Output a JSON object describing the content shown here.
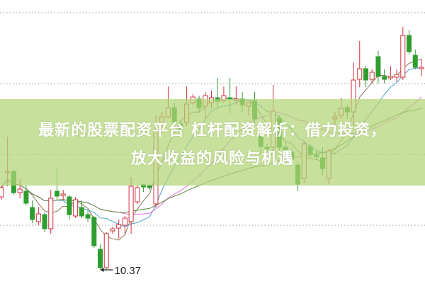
{
  "banner": {
    "title_line1": "最新的股票配资平台 杠杆配资解析：借力投资，",
    "title_line2": "放大收益的风险与机遇"
  },
  "chart_data": {
    "type": "candlestick",
    "title": "",
    "grid": true,
    "gridlines": [
      11,
      12,
      13,
      14
    ],
    "ylim": [
      10.17,
      14.18
    ],
    "colors": {
      "up": "#d0303a",
      "down": "#2f9e2f",
      "banner": "#b2d476",
      "ma": [
        "#8a7a5a",
        "#4a9fd0",
        "#e070e0",
        "#5a8a3a"
      ]
    },
    "moving_average_windows": [
      5,
      10,
      20,
      40
    ],
    "low_annotation": {
      "label": "10.37",
      "value": 10.37,
      "candle_index": 16
    },
    "candles_ohlc": [
      [
        11.4,
        11.56,
        11.36,
        11.53
      ],
      [
        11.74,
        12.25,
        11.55,
        11.76
      ],
      [
        11.76,
        11.78,
        11.43,
        11.46
      ],
      [
        11.46,
        11.65,
        11.38,
        11.51
      ],
      [
        11.48,
        11.56,
        11.28,
        11.31
      ],
      [
        11.25,
        11.35,
        11.03,
        11.08
      ],
      [
        11.05,
        11.26,
        11.0,
        11.16
      ],
      [
        11.15,
        11.18,
        10.9,
        10.95
      ],
      [
        10.95,
        11.5,
        10.88,
        11.38
      ],
      [
        11.48,
        11.81,
        11.35,
        11.41
      ],
      [
        11.42,
        11.5,
        11.36,
        11.44
      ],
      [
        11.4,
        11.43,
        11.08,
        11.15
      ],
      [
        11.13,
        11.4,
        11.1,
        11.36
      ],
      [
        11.25,
        11.35,
        11.1,
        11.13
      ],
      [
        11.15,
        11.22,
        11.05,
        11.1
      ],
      [
        11.11,
        11.13,
        10.68,
        10.71
      ],
      [
        10.66,
        10.73,
        10.37,
        10.4
      ],
      [
        10.4,
        10.9,
        10.38,
        10.88
      ],
      [
        10.92,
        10.98,
        10.88,
        10.95
      ],
      [
        10.96,
        11.08,
        10.81,
        11.01
      ],
      [
        11.0,
        11.13,
        10.88,
        11.1
      ],
      [
        11.05,
        11.68,
        10.88,
        11.55
      ],
      [
        11.33,
        11.57,
        11.3,
        11.53
      ],
      [
        11.57,
        11.59,
        11.47,
        11.54
      ],
      [
        11.56,
        11.6,
        11.5,
        11.53
      ],
      [
        11.3,
        12.55,
        11.25,
        12.35
      ],
      [
        12.45,
        12.6,
        12.3,
        12.53
      ],
      [
        12.53,
        12.96,
        12.51,
        12.66
      ],
      [
        12.66,
        12.73,
        12.43,
        12.46
      ],
      [
        12.43,
        12.48,
        12.28,
        12.35
      ],
      [
        12.45,
        12.96,
        12.4,
        12.71
      ],
      [
        12.73,
        12.85,
        12.7,
        12.81
      ],
      [
        12.78,
        12.83,
        12.58,
        12.66
      ],
      [
        12.68,
        12.88,
        12.5,
        12.83
      ],
      [
        12.73,
        12.9,
        12.65,
        12.8
      ],
      [
        12.8,
        13.08,
        12.65,
        12.75
      ],
      [
        12.76,
        12.96,
        12.73,
        12.83
      ],
      [
        12.8,
        13.08,
        12.58,
        12.78
      ],
      [
        12.76,
        12.96,
        12.7,
        12.78
      ],
      [
        12.78,
        12.88,
        12.6,
        12.7
      ],
      [
        12.68,
        12.73,
        12.55,
        12.73
      ],
      [
        12.76,
        12.88,
        12.43,
        12.5
      ],
      [
        12.26,
        12.32,
        12.0,
        12.11
      ],
      [
        12.1,
        12.15,
        12.03,
        12.08
      ],
      [
        12.1,
        12.98,
        12.05,
        12.61
      ],
      [
        12.51,
        12.55,
        12.05,
        12.1
      ],
      [
        12.1,
        12.18,
        11.98,
        12.03
      ],
      [
        12.03,
        12.08,
        11.9,
        11.93
      ],
      [
        11.85,
        11.9,
        11.48,
        11.58
      ],
      [
        11.66,
        12.18,
        11.6,
        12.15
      ],
      [
        12.11,
        12.15,
        11.95,
        12.01
      ],
      [
        11.99,
        12.05,
        11.92,
        11.97
      ],
      [
        11.95,
        12.1,
        11.7,
        11.8
      ],
      [
        11.66,
        12.08,
        11.58,
        12.05
      ],
      [
        12.5,
        12.6,
        12.4,
        12.53
      ],
      [
        12.55,
        12.8,
        12.5,
        12.65
      ],
      [
        12.66,
        12.7,
        12.5,
        12.6
      ],
      [
        12.6,
        13.3,
        12.4,
        13.05
      ],
      [
        13.06,
        13.6,
        12.95,
        13.21
      ],
      [
        13.21,
        13.25,
        12.95,
        13.05
      ],
      [
        13.06,
        13.2,
        13.0,
        13.16
      ],
      [
        13.38,
        13.46,
        13.0,
        13.1
      ],
      [
        13.1,
        13.2,
        13.0,
        13.06
      ],
      [
        13.08,
        13.25,
        13.05,
        13.1
      ],
      [
        13.09,
        13.2,
        13.02,
        13.13
      ],
      [
        13.09,
        13.8,
        13.05,
        13.68
      ],
      [
        13.68,
        13.76,
        13.41,
        13.45
      ],
      [
        13.4,
        13.48,
        13.2,
        13.23
      ],
      [
        13.21,
        13.35,
        13.1,
        13.23
      ]
    ]
  }
}
